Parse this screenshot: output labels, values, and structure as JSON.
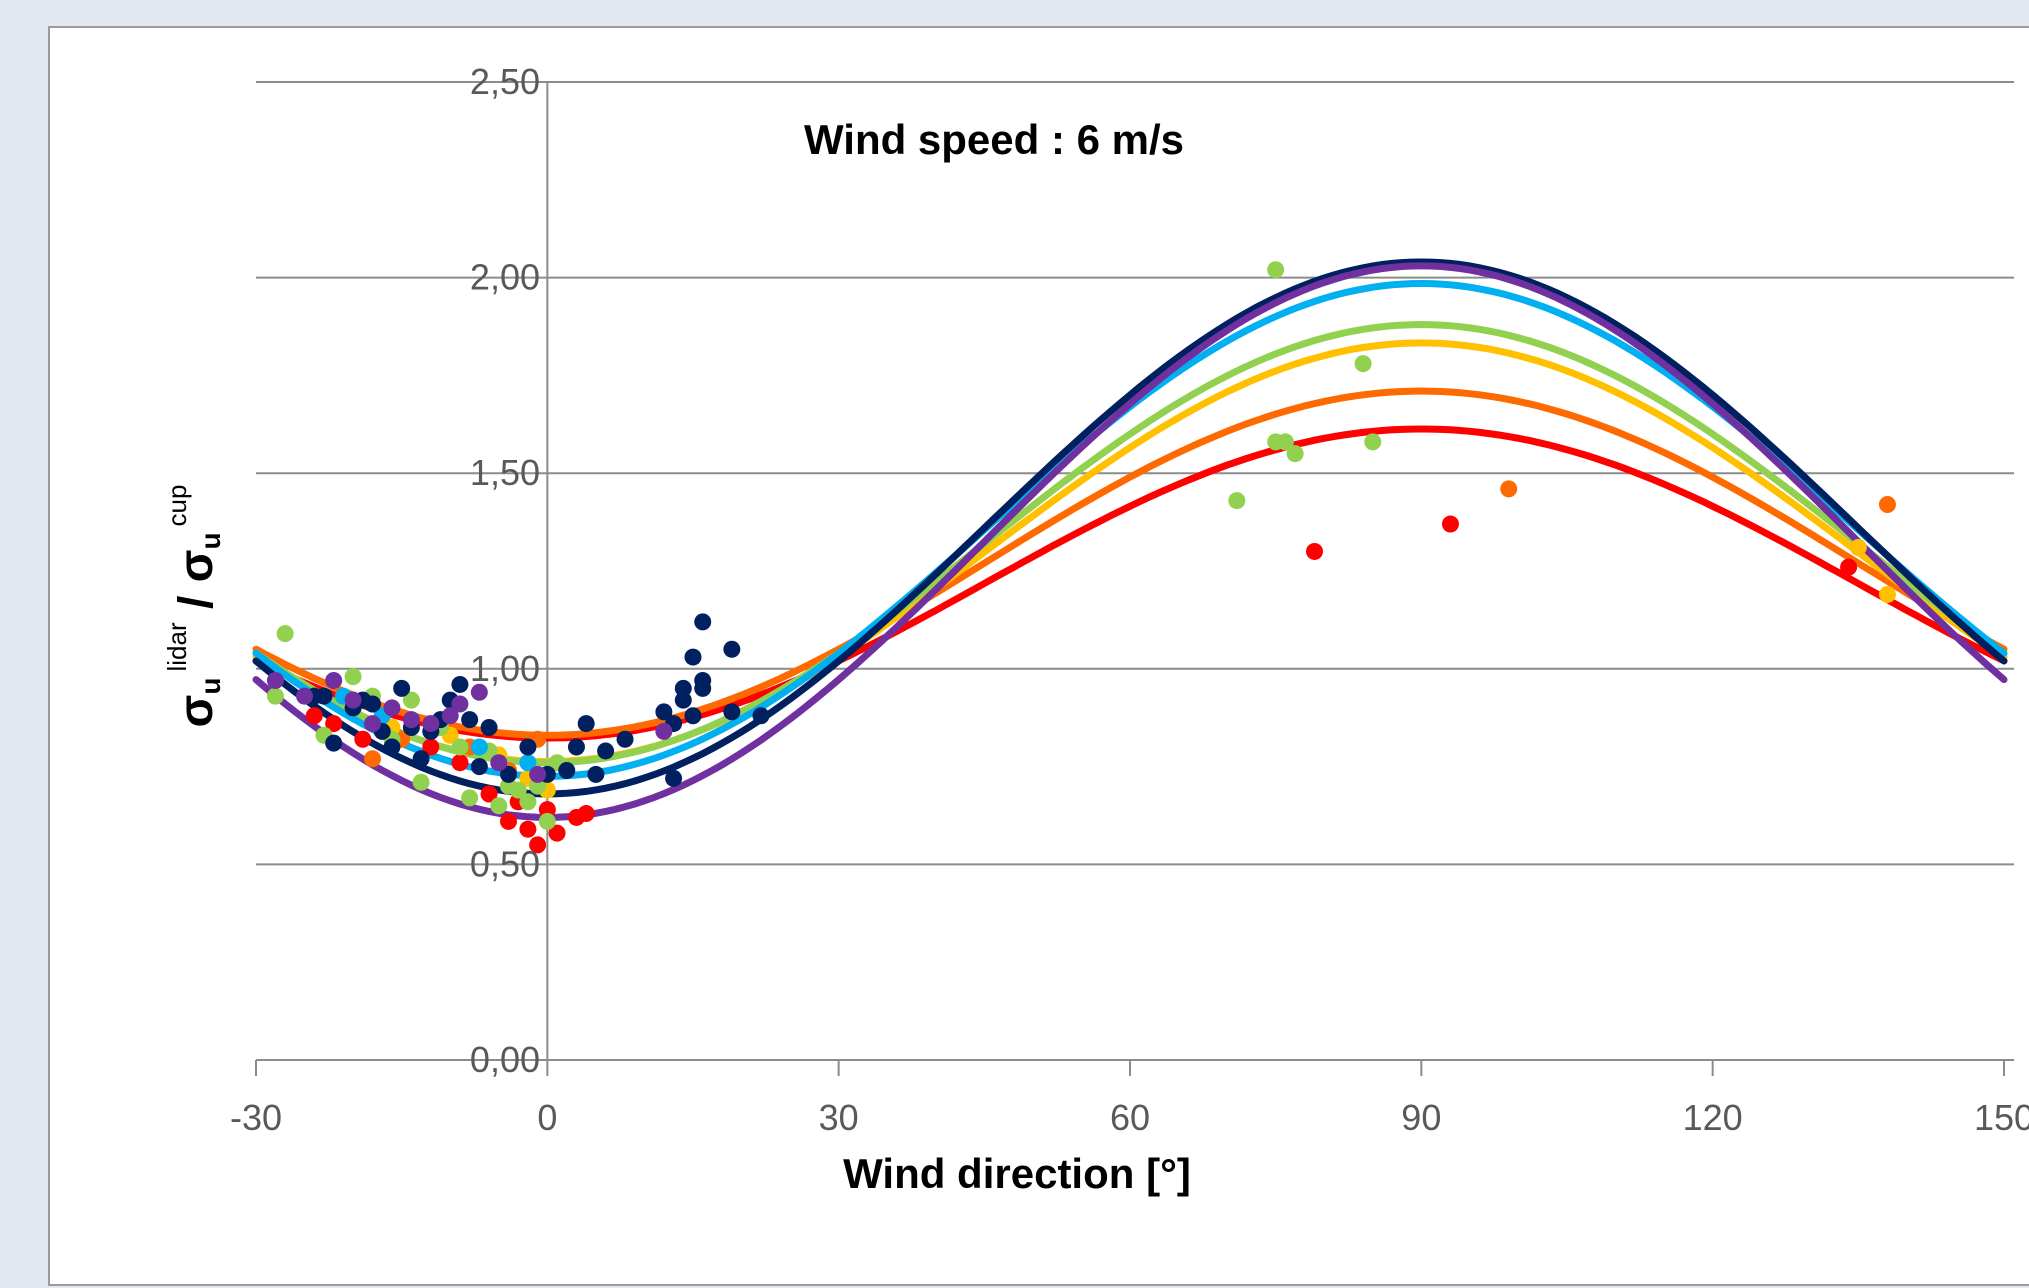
{
  "chart_data": {
    "type": "scatter",
    "title": "",
    "annotation": "Wind speed : 6 m/s",
    "xlabel": "Wind direction [°]",
    "ylabel": {
      "base": "σ",
      "sub": "u",
      "sup1": "lidar",
      "sep": " / ",
      "sup2": "cup"
    },
    "xlim": [
      -30,
      150
    ],
    "ylim": [
      0,
      2.5
    ],
    "x_ticks": [
      -30,
      0,
      30,
      60,
      90,
      120,
      150
    ],
    "x_tick_labels": [
      "-30",
      "0",
      "30",
      "60",
      "90",
      "120",
      "150"
    ],
    "y_ticks": [
      0,
      0.5,
      1.0,
      1.5,
      2.0,
      2.5
    ],
    "y_tick_labels": [
      "0,00",
      "0,50",
      "1,00",
      "1,50",
      "2,00",
      "2,50"
    ],
    "grid": "horizontal",
    "legend": "none",
    "fit_curves": [
      {
        "color": "#ff0000",
        "amplitude": 0.395,
        "offset": 1.218
      },
      {
        "color": "#ff6a00",
        "amplitude": 0.44,
        "offset": 1.27
      },
      {
        "color": "#ffc000",
        "amplitude": 0.535,
        "offset": 1.298
      },
      {
        "color": "#92d050",
        "amplitude": 0.56,
        "offset": 1.32
      },
      {
        "color": "#00b0f0",
        "amplitude": 0.63,
        "offset": 1.355
      },
      {
        "color": "#002060",
        "amplitude": 0.68,
        "offset": 1.36
      },
      {
        "color": "#7030a0",
        "amplitude": 0.705,
        "offset": 1.325
      }
    ],
    "series": [
      {
        "color": "#ff0000",
        "points": [
          [
            -24,
            0.88
          ],
          [
            -22,
            0.86
          ],
          [
            -19,
            0.82
          ],
          [
            -16,
            0.84
          ],
          [
            -12,
            0.8
          ],
          [
            -9,
            0.76
          ],
          [
            -6,
            0.68
          ],
          [
            -4,
            0.61
          ],
          [
            -3,
            0.66
          ],
          [
            -2,
            0.59
          ],
          [
            -1,
            0.55
          ],
          [
            0,
            0.64
          ],
          [
            1,
            0.58
          ],
          [
            3,
            0.62
          ],
          [
            4,
            0.63
          ],
          [
            79,
            1.3
          ],
          [
            93,
            1.37
          ],
          [
            134,
            1.26
          ]
        ]
      },
      {
        "color": "#ff6a00",
        "points": [
          [
            -18,
            0.77
          ],
          [
            -15,
            0.82
          ],
          [
            -12,
            0.86
          ],
          [
            -8,
            0.8
          ],
          [
            -4,
            0.74
          ],
          [
            -1,
            0.82
          ],
          [
            99,
            1.46
          ],
          [
            138,
            1.42
          ]
        ]
      },
      {
        "color": "#ffc000",
        "points": [
          [
            -20,
            0.9
          ],
          [
            -16,
            0.85
          ],
          [
            -10,
            0.83
          ],
          [
            -5,
            0.78
          ],
          [
            -2,
            0.72
          ],
          [
            0,
            0.69
          ],
          [
            135,
            1.31
          ],
          [
            138,
            1.19
          ]
        ]
      },
      {
        "color": "#92d050",
        "points": [
          [
            -28,
            0.93
          ],
          [
            -27,
            1.09
          ],
          [
            -23,
            0.83
          ],
          [
            -20,
            0.98
          ],
          [
            -18,
            0.93
          ],
          [
            -16,
            0.82
          ],
          [
            -14,
            0.92
          ],
          [
            -13,
            0.71
          ],
          [
            -11,
            0.85
          ],
          [
            -9,
            0.8
          ],
          [
            -8,
            0.67
          ],
          [
            -6,
            0.79
          ],
          [
            -5,
            0.65
          ],
          [
            -4,
            0.7
          ],
          [
            -3,
            0.69
          ],
          [
            -2,
            0.66
          ],
          [
            -1,
            0.7
          ],
          [
            0,
            0.61
          ],
          [
            1,
            0.76
          ],
          [
            71,
            1.43
          ],
          [
            75,
            2.02
          ],
          [
            75,
            1.58
          ],
          [
            76,
            1.58
          ],
          [
            77,
            1.55
          ],
          [
            84,
            1.78
          ],
          [
            85,
            1.58
          ]
        ]
      },
      {
        "color": "#00b0f0",
        "points": [
          [
            -21,
            0.93
          ],
          [
            -17,
            0.88
          ],
          [
            -12,
            0.84
          ],
          [
            -7,
            0.8
          ],
          [
            -2,
            0.76
          ]
        ]
      },
      {
        "color": "#002060",
        "points": [
          [
            -24,
            0.93
          ],
          [
            -23,
            0.93
          ],
          [
            -22,
            0.81
          ],
          [
            -20,
            0.9
          ],
          [
            -19,
            0.92
          ],
          [
            -18,
            0.91
          ],
          [
            -17,
            0.84
          ],
          [
            -16,
            0.8
          ],
          [
            -15,
            0.95
          ],
          [
            -14,
            0.85
          ],
          [
            -13,
            0.77
          ],
          [
            -12,
            0.84
          ],
          [
            -11,
            0.87
          ],
          [
            -10,
            0.92
          ],
          [
            -9,
            0.96
          ],
          [
            -8,
            0.87
          ],
          [
            -7,
            0.75
          ],
          [
            -6,
            0.85
          ],
          [
            -4,
            0.73
          ],
          [
            -2,
            0.8
          ],
          [
            0,
            0.73
          ],
          [
            2,
            0.74
          ],
          [
            3,
            0.8
          ],
          [
            4,
            0.86
          ],
          [
            5,
            0.73
          ],
          [
            6,
            0.79
          ],
          [
            8,
            0.82
          ],
          [
            12,
            0.89
          ],
          [
            13,
            0.86
          ],
          [
            13,
            0.72
          ],
          [
            14,
            0.95
          ],
          [
            14,
            0.92
          ],
          [
            15,
            1.03
          ],
          [
            15,
            0.88
          ],
          [
            16,
            1.12
          ],
          [
            16,
            0.97
          ],
          [
            16,
            0.95
          ],
          [
            19,
            1.05
          ],
          [
            19,
            0.89
          ],
          [
            22,
            0.88
          ]
        ]
      },
      {
        "color": "#7030a0",
        "points": [
          [
            -28,
            0.97
          ],
          [
            -25,
            0.93
          ],
          [
            -22,
            0.97
          ],
          [
            -20,
            0.92
          ],
          [
            -18,
            0.86
          ],
          [
            -16,
            0.9
          ],
          [
            -14,
            0.87
          ],
          [
            -12,
            0.86
          ],
          [
            -10,
            0.88
          ],
          [
            -9,
            0.91
          ],
          [
            -7,
            0.94
          ],
          [
            -5,
            0.76
          ],
          [
            -1,
            0.73
          ],
          [
            12,
            0.84
          ]
        ]
      }
    ]
  }
}
